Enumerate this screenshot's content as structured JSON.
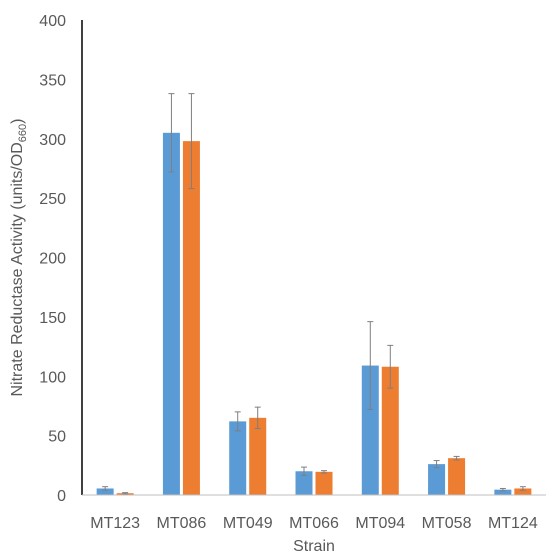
{
  "chart_data": {
    "type": "bar",
    "title": "",
    "xlabel": "Strain",
    "ylabel": {
      "main": "Nitrate Reductase Activity (units/OD",
      "subscript": "660",
      "close": ")"
    },
    "ylim": [
      0,
      400
    ],
    "yticks": [
      0,
      50,
      100,
      150,
      200,
      250,
      300,
      350,
      400
    ],
    "ytick_labels": [
      "0",
      "50",
      "100",
      "150",
      "200",
      "250",
      "300",
      "350",
      "400"
    ],
    "grid": false,
    "legend": "none",
    "categories": [
      "MT123",
      "MT086",
      "MT049",
      "MT066",
      "MT094",
      "MT058",
      "MT124"
    ],
    "series": [
      {
        "color": "#5B9BD5",
        "values": [
          5.5,
          305,
          62,
          20,
          109,
          26,
          4.5
        ],
        "errors": [
          1.5,
          33,
          8,
          3.5,
          37,
          3,
          1
        ]
      },
      {
        "color": "#ED7D31",
        "values": [
          1.5,
          298,
          65,
          19.5,
          108,
          31,
          5.5
        ],
        "errors": [
          0.5,
          40,
          9,
          1,
          18,
          1.5,
          1.5
        ]
      }
    ]
  }
}
